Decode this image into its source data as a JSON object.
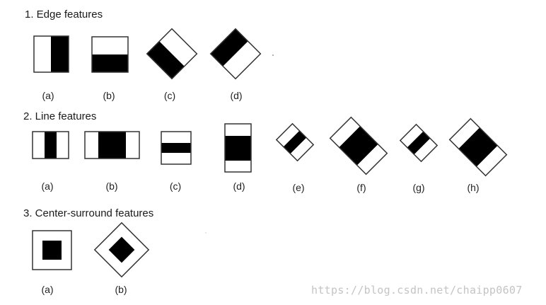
{
  "sections": [
    {
      "title": "1. Edge features",
      "captions": [
        "(a)",
        "(b)",
        "(c)",
        "(d)"
      ]
    },
    {
      "title": "2. Line features",
      "captions": [
        "(a)",
        "(b)",
        "(c)",
        "(d)",
        "(e)",
        "(f)",
        "(g)",
        "(h)"
      ]
    },
    {
      "title": "3. Center-surround features",
      "captions": [
        "(a)",
        "(b)"
      ]
    }
  ],
  "watermark": "https://blog.csdn.net/chaipp0607",
  "colors": {
    "fill": "#000000",
    "stroke": "#333333",
    "background": "#ffffff"
  }
}
